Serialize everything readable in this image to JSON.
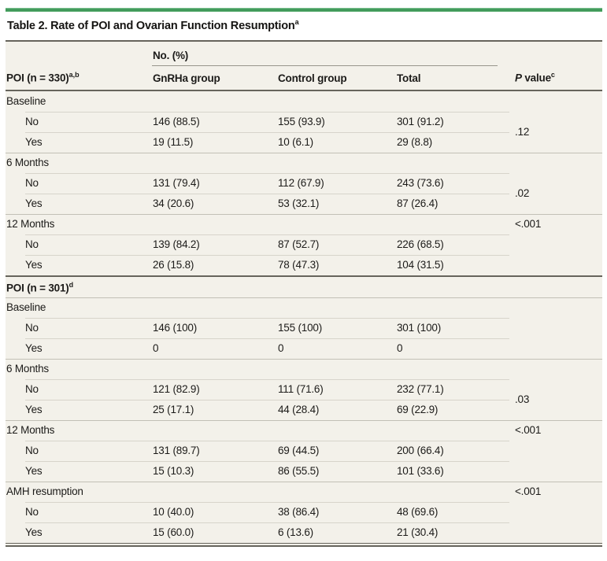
{
  "colors": {
    "accent_green": "#3f9a55",
    "table_bg": "#f3f1ea",
    "rule_dark": "#66645c",
    "sep_light": "#d7d4cb",
    "sep_section": "#c2c0b6",
    "text": "#1c1b19"
  },
  "title": {
    "text": "Table 2. Rate of POI and Ovarian Function Resumption",
    "sup": "a"
  },
  "header": {
    "spanner": "No. (%)",
    "stub": {
      "text": "POI (n = 330)",
      "sup": "a,b"
    },
    "col_gnrha": "GnRHa group",
    "col_control": "Control group",
    "col_total": "Total",
    "pcol": {
      "italic": "P",
      "rest": " value",
      "sup": "c"
    }
  },
  "chart_data": {
    "type": "table"
  },
  "blocks": [
    {
      "sections": [
        {
          "label": "Baseline",
          "p": ".12",
          "p_mode": "span",
          "rows": [
            {
              "label": "No",
              "gnrha": "146 (88.5)",
              "control": "155 (93.9)",
              "total": "301 (91.2)"
            },
            {
              "label": "Yes",
              "gnrha": "19 (11.5)",
              "control": "10 (6.1)",
              "total": "29 (8.8)"
            }
          ]
        },
        {
          "label": "6 Months",
          "p": ".02",
          "p_mode": "span",
          "rows": [
            {
              "label": "No",
              "gnrha": "131 (79.4)",
              "control": "112 (67.9)",
              "total": "243 (73.6)"
            },
            {
              "label": "Yes",
              "gnrha": "34 (20.6)",
              "control": "53 (32.1)",
              "total": "87 (26.4)"
            }
          ]
        },
        {
          "label": "12 Months",
          "p": "<.001",
          "p_mode": "header",
          "rows": [
            {
              "label": "No",
              "gnrha": "139 (84.2)",
              "control": "87 (52.7)",
              "total": "226 (68.5)"
            },
            {
              "label": "Yes",
              "gnrha": "26 (15.8)",
              "control": "78 (47.3)",
              "total": "104 (31.5)"
            }
          ]
        }
      ]
    },
    {
      "header": {
        "text": "POI (n = 301)",
        "sup": "d"
      },
      "sections": [
        {
          "label": "Baseline",
          "p": "",
          "p_mode": "none",
          "rows": [
            {
              "label": "No",
              "gnrha": "146 (100)",
              "control": "155 (100)",
              "total": "301 (100)"
            },
            {
              "label": "Yes",
              "gnrha": "0",
              "control": "0",
              "total": "0"
            }
          ]
        },
        {
          "label": "6 Months",
          "p": ".03",
          "p_mode": "span",
          "rows": [
            {
              "label": "No",
              "gnrha": "121 (82.9)",
              "control": "111 (71.6)",
              "total": "232 (77.1)"
            },
            {
              "label": "Yes",
              "gnrha": "25 (17.1)",
              "control": "44 (28.4)",
              "total": "69 (22.9)"
            }
          ]
        },
        {
          "label": "12 Months",
          "p": "<.001",
          "p_mode": "header",
          "rows": [
            {
              "label": "No",
              "gnrha": "131 (89.7)",
              "control": "69 (44.5)",
              "total": "200 (66.4)"
            },
            {
              "label": "Yes",
              "gnrha": "15 (10.3)",
              "control": "86 (55.5)",
              "total": "101 (33.6)"
            }
          ]
        },
        {
          "label": "AMH resumption",
          "p": "<.001",
          "p_mode": "header",
          "rows": [
            {
              "label": "No",
              "gnrha": "10 (40.0)",
              "control": "38 (86.4)",
              "total": "48 (69.6)"
            },
            {
              "label": "Yes",
              "gnrha": "15 (60.0)",
              "control": "6 (13.6)",
              "total": "21 (30.4)"
            }
          ]
        }
      ]
    }
  ]
}
